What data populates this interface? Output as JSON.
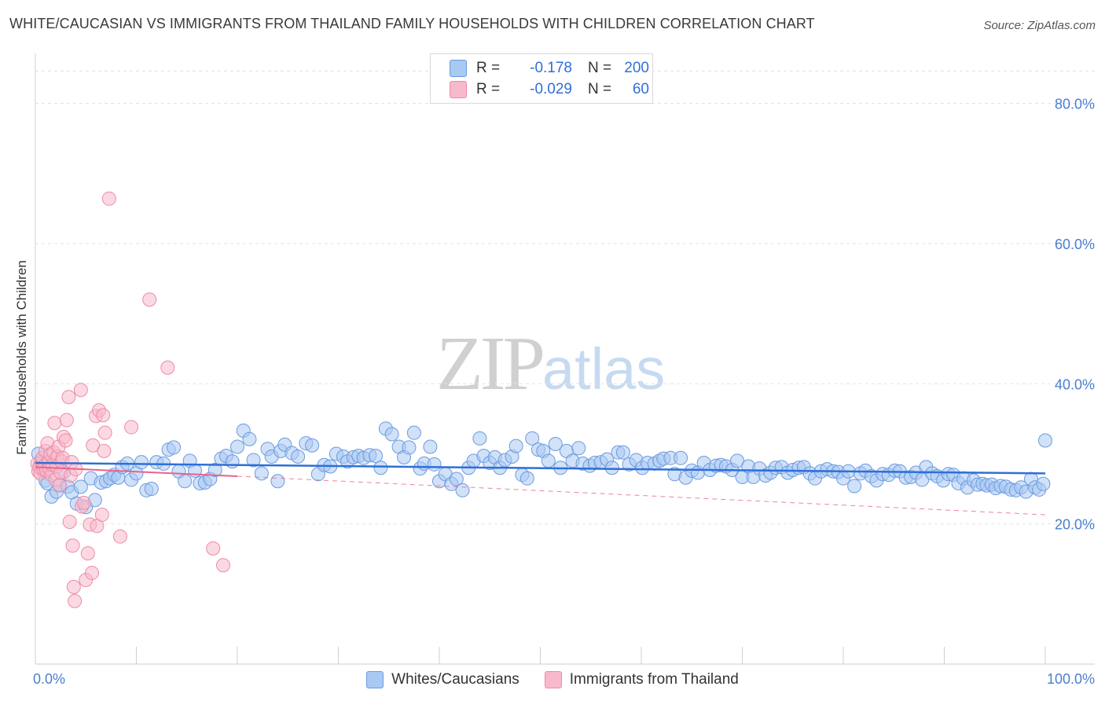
{
  "title": "WHITE/CAUCASIAN VS IMMIGRANTS FROM THAILAND FAMILY HOUSEHOLDS WITH CHILDREN CORRELATION CHART",
  "source": "Source: ZipAtlas.com",
  "watermark": {
    "zip": "ZIP",
    "atlas": "atlas"
  },
  "legend": {
    "rows": [
      {
        "r_label": "R =",
        "r_value": "-0.178",
        "n_label": "N =",
        "n_value": "200"
      },
      {
        "r_label": "R =",
        "r_value": "-0.029",
        "n_label": "N =",
        "n_value": "60"
      }
    ]
  },
  "colors": {
    "blue_fill": "#a9c8f2",
    "blue_stroke": "#6b9be0",
    "blue_line": "#2f6fd6",
    "pink_fill": "#f7b9cb",
    "pink_stroke": "#ee8aa8",
    "pink_line": "#e8638d",
    "grid": "#e3e3e3",
    "axis_text": "#4a7fd0"
  },
  "chart_data": {
    "type": "scatter",
    "title": "WHITE/CAUCASIAN VS IMMIGRANTS FROM THAILAND FAMILY HOUSEHOLDS WITH CHILDREN CORRELATION CHART",
    "xlabel": "",
    "ylabel": "Family Households with Children",
    "xlim": [
      0,
      100
    ],
    "ylim": [
      0,
      86
    ],
    "x_tick_labels": [
      "0.0%",
      "100.0%"
    ],
    "y_ticks": [
      {
        "value": 20,
        "label": "20.0%"
      },
      {
        "value": 40,
        "label": "40.0%"
      },
      {
        "value": 60,
        "label": "60.0%"
      },
      {
        "value": 80,
        "label": "80.0%"
      }
    ],
    "series": [
      {
        "name": "Whites/Caucasians",
        "color": "blue",
        "trend": {
          "x": [
            0,
            100
          ],
          "y": [
            28.7,
            27.2
          ],
          "style": "solid"
        },
        "points": [
          [
            0.3,
            30.0
          ],
          [
            0.5,
            28.5
          ],
          [
            0.8,
            27.6
          ],
          [
            1.0,
            26.2
          ],
          [
            1.2,
            25.8
          ],
          [
            1.6,
            23.9
          ],
          [
            2.1,
            24.6
          ],
          [
            2.4,
            25.6
          ],
          [
            2.8,
            27.4
          ],
          [
            3.2,
            25.3
          ],
          [
            3.6,
            24.5
          ],
          [
            4.1,
            22.9
          ],
          [
            4.5,
            25.3
          ],
          [
            5.0,
            22.4
          ],
          [
            5.5,
            26.5
          ],
          [
            5.9,
            23.4
          ],
          [
            6.5,
            25.9
          ],
          [
            7.0,
            26.1
          ],
          [
            7.4,
            26.5
          ],
          [
            7.8,
            27.0
          ],
          [
            8.2,
            26.6
          ],
          [
            8.6,
            28.1
          ],
          [
            9.1,
            28.6
          ],
          [
            9.5,
            26.3
          ],
          [
            10.0,
            27.2
          ],
          [
            10.5,
            28.8
          ],
          [
            11.0,
            24.8
          ],
          [
            11.5,
            25.0
          ],
          [
            12.0,
            28.8
          ],
          [
            12.7,
            28.6
          ],
          [
            13.2,
            30.6
          ],
          [
            13.7,
            30.9
          ],
          [
            14.2,
            27.5
          ],
          [
            14.8,
            26.1
          ],
          [
            15.3,
            29.0
          ],
          [
            15.8,
            27.6
          ],
          [
            16.3,
            25.8
          ],
          [
            16.8,
            25.9
          ],
          [
            17.3,
            26.4
          ],
          [
            17.8,
            27.7
          ],
          [
            18.4,
            29.3
          ],
          [
            18.9,
            29.7
          ],
          [
            19.5,
            28.9
          ],
          [
            20.0,
            31.0
          ],
          [
            20.6,
            33.3
          ],
          [
            21.2,
            32.1
          ],
          [
            21.6,
            29.1
          ],
          [
            22.4,
            27.2
          ],
          [
            23.0,
            30.7
          ],
          [
            23.4,
            29.6
          ],
          [
            24.0,
            26.1
          ],
          [
            24.3,
            30.4
          ],
          [
            24.7,
            31.3
          ],
          [
            25.4,
            30.1
          ],
          [
            26.0,
            29.6
          ],
          [
            26.8,
            31.5
          ],
          [
            27.4,
            31.2
          ],
          [
            28.0,
            27.1
          ],
          [
            28.6,
            28.4
          ],
          [
            29.2,
            28.2
          ],
          [
            29.8,
            30.0
          ],
          [
            30.5,
            29.6
          ],
          [
            30.9,
            28.9
          ],
          [
            31.5,
            29.5
          ],
          [
            32.0,
            29.7
          ],
          [
            32.5,
            29.4
          ],
          [
            33.1,
            29.8
          ],
          [
            33.7,
            29.7
          ],
          [
            34.2,
            28.0
          ],
          [
            34.7,
            33.6
          ],
          [
            35.3,
            32.8
          ],
          [
            36.0,
            31.0
          ],
          [
            36.5,
            29.5
          ],
          [
            37.0,
            30.9
          ],
          [
            37.5,
            33.0
          ],
          [
            38.1,
            27.9
          ],
          [
            38.5,
            28.6
          ],
          [
            39.1,
            31.0
          ],
          [
            39.5,
            28.5
          ],
          [
            40.0,
            26.1
          ],
          [
            40.6,
            27.1
          ],
          [
            41.2,
            25.7
          ],
          [
            41.7,
            26.4
          ],
          [
            42.3,
            24.8
          ],
          [
            42.9,
            28.0
          ],
          [
            43.4,
            29.0
          ],
          [
            44.0,
            32.2
          ],
          [
            44.4,
            29.7
          ],
          [
            45.0,
            28.7
          ],
          [
            45.5,
            29.5
          ],
          [
            46.0,
            28.0
          ],
          [
            46.5,
            29.1
          ],
          [
            47.2,
            29.6
          ],
          [
            47.6,
            31.1
          ],
          [
            48.2,
            27.0
          ],
          [
            48.7,
            26.5
          ],
          [
            49.2,
            32.2
          ],
          [
            49.8,
            30.6
          ],
          [
            50.3,
            30.4
          ],
          [
            50.8,
            29.0
          ],
          [
            51.5,
            31.4
          ],
          [
            52.0,
            28.0
          ],
          [
            52.6,
            30.4
          ],
          [
            53.2,
            29.0
          ],
          [
            53.8,
            30.8
          ],
          [
            54.2,
            28.6
          ],
          [
            54.9,
            28.3
          ],
          [
            55.4,
            28.7
          ],
          [
            56.0,
            28.8
          ],
          [
            56.6,
            29.2
          ],
          [
            57.1,
            28.0
          ],
          [
            57.7,
            30.2
          ],
          [
            58.2,
            30.2
          ],
          [
            58.8,
            28.5
          ],
          [
            59.5,
            29.1
          ],
          [
            60.1,
            28.0
          ],
          [
            60.6,
            28.7
          ],
          [
            61.3,
            28.6
          ],
          [
            61.8,
            29.0
          ],
          [
            62.2,
            29.3
          ],
          [
            62.9,
            29.4
          ],
          [
            63.3,
            27.1
          ],
          [
            63.9,
            29.4
          ],
          [
            64.4,
            26.6
          ],
          [
            65.0,
            27.6
          ],
          [
            65.6,
            27.3
          ],
          [
            66.2,
            28.7
          ],
          [
            66.8,
            27.7
          ],
          [
            67.4,
            28.3
          ],
          [
            67.9,
            28.4
          ],
          [
            68.4,
            28.2
          ],
          [
            69.0,
            27.7
          ],
          [
            69.5,
            29.0
          ],
          [
            70.0,
            26.7
          ],
          [
            70.6,
            28.2
          ],
          [
            71.1,
            26.7
          ],
          [
            71.7,
            27.9
          ],
          [
            72.3,
            26.9
          ],
          [
            72.8,
            27.3
          ],
          [
            73.3,
            28.0
          ],
          [
            73.9,
            28.1
          ],
          [
            74.5,
            27.3
          ],
          [
            75.0,
            27.7
          ],
          [
            75.6,
            28.0
          ],
          [
            76.1,
            28.1
          ],
          [
            76.7,
            27.2
          ],
          [
            77.2,
            26.5
          ],
          [
            77.8,
            27.5
          ],
          [
            78.4,
            27.8
          ],
          [
            79.0,
            27.5
          ],
          [
            79.5,
            27.4
          ],
          [
            80.0,
            26.5
          ],
          [
            80.5,
            27.5
          ],
          [
            81.1,
            25.4
          ],
          [
            81.7,
            27.2
          ],
          [
            82.2,
            27.6
          ],
          [
            82.8,
            26.8
          ],
          [
            83.3,
            26.2
          ],
          [
            83.9,
            27.1
          ],
          [
            84.5,
            27.0
          ],
          [
            85.1,
            27.6
          ],
          [
            85.6,
            27.5
          ],
          [
            86.2,
            26.6
          ],
          [
            86.7,
            26.7
          ],
          [
            87.2,
            27.3
          ],
          [
            87.8,
            26.3
          ],
          [
            88.2,
            28.1
          ],
          [
            88.8,
            27.2
          ],
          [
            89.3,
            26.8
          ],
          [
            89.9,
            26.2
          ],
          [
            90.4,
            27.1
          ],
          [
            90.9,
            27.0
          ],
          [
            91.4,
            25.8
          ],
          [
            91.9,
            26.5
          ],
          [
            92.3,
            25.2
          ],
          [
            92.9,
            26.2
          ],
          [
            93.3,
            25.6
          ],
          [
            93.8,
            25.7
          ],
          [
            94.2,
            25.5
          ],
          [
            94.7,
            25.6
          ],
          [
            95.1,
            25.1
          ],
          [
            95.6,
            25.4
          ],
          [
            96.1,
            25.3
          ],
          [
            96.6,
            24.9
          ],
          [
            97.1,
            24.8
          ],
          [
            97.6,
            25.2
          ],
          [
            98.1,
            24.6
          ],
          [
            98.6,
            26.4
          ],
          [
            99.0,
            25.2
          ],
          [
            99.4,
            24.9
          ],
          [
            99.8,
            25.7
          ],
          [
            100.0,
            31.9
          ]
        ]
      },
      {
        "name": "Immigrants from Thailand",
        "color": "pink",
        "trend": {
          "x": [
            0,
            20
          ],
          "y": [
            28.1,
            26.8
          ],
          "style": "solid",
          "ext_x": [
            20,
            100
          ],
          "ext_y": [
            26.8,
            21.3
          ],
          "ext_style": "dashed"
        },
        "points": [
          [
            0.2,
            28.6
          ],
          [
            0.3,
            27.5
          ],
          [
            0.4,
            28.1
          ],
          [
            0.5,
            27.2
          ],
          [
            0.6,
            28.9
          ],
          [
            0.7,
            29.4
          ],
          [
            0.8,
            27.8
          ],
          [
            0.9,
            28.3
          ],
          [
            1.0,
            30.4
          ],
          [
            1.1,
            27.6
          ],
          [
            1.2,
            31.5
          ],
          [
            1.3,
            28.8
          ],
          [
            1.4,
            27.9
          ],
          [
            1.5,
            29.9
          ],
          [
            1.6,
            27.0
          ],
          [
            1.7,
            28.4
          ],
          [
            1.8,
            30.2
          ],
          [
            1.9,
            34.4
          ],
          [
            2.0,
            26.3
          ],
          [
            2.1,
            28.2
          ],
          [
            2.2,
            29.6
          ],
          [
            2.3,
            31.0
          ],
          [
            2.4,
            25.5
          ],
          [
            2.5,
            27.3
          ],
          [
            2.6,
            28.9
          ],
          [
            2.7,
            29.4
          ],
          [
            2.8,
            32.4
          ],
          [
            3.0,
            31.9
          ],
          [
            3.1,
            34.8
          ],
          [
            3.3,
            38.1
          ],
          [
            3.4,
            20.3
          ],
          [
            3.5,
            26.9
          ],
          [
            3.6,
            28.8
          ],
          [
            3.7,
            16.9
          ],
          [
            3.8,
            11.0
          ],
          [
            3.9,
            9.0
          ],
          [
            4.0,
            27.8
          ],
          [
            4.5,
            39.1
          ],
          [
            4.6,
            22.5
          ],
          [
            4.8,
            23.0
          ],
          [
            5.0,
            12.0
          ],
          [
            5.2,
            15.8
          ],
          [
            5.4,
            19.9
          ],
          [
            5.6,
            13.0
          ],
          [
            5.7,
            31.2
          ],
          [
            6.0,
            35.4
          ],
          [
            6.1,
            19.7
          ],
          [
            6.3,
            36.2
          ],
          [
            6.6,
            21.3
          ],
          [
            6.7,
            35.5
          ],
          [
            6.8,
            30.4
          ],
          [
            6.9,
            33.0
          ],
          [
            7.3,
            66.4
          ],
          [
            8.4,
            18.2
          ],
          [
            9.5,
            33.8
          ],
          [
            11.3,
            52.0
          ],
          [
            13.1,
            42.3
          ],
          [
            17.6,
            16.5
          ],
          [
            18.6,
            14.1
          ]
        ]
      }
    ]
  },
  "bottom_legend": {
    "blue_label": "Whites/Caucasians",
    "pink_label": "Immigrants from Thailand"
  }
}
